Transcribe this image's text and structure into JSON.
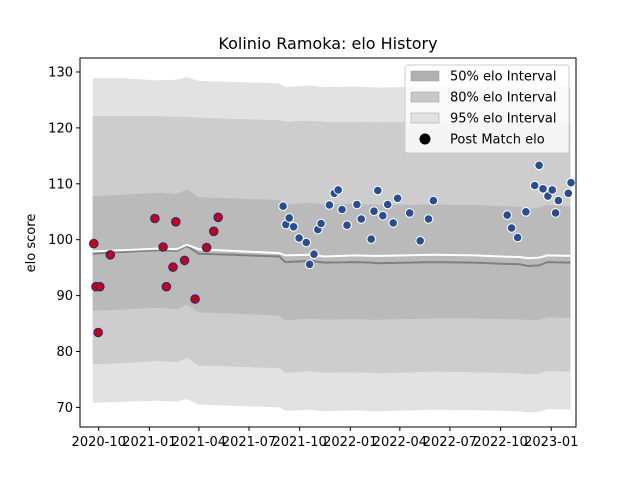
{
  "chart_data": {
    "type": "scatter",
    "title": "Kolinio Ramoka: elo History",
    "xlabel": "",
    "ylabel": "elo score",
    "xlim": [
      "2020-08-28",
      "2023-02-15"
    ],
    "ylim": [
      66.5,
      132.5
    ],
    "yticks": [
      70,
      80,
      90,
      100,
      110,
      120,
      130
    ],
    "xticks": [
      {
        "date": "2020-10-01",
        "label": "2020-10"
      },
      {
        "date": "2021-01-01",
        "label": "2021-01"
      },
      {
        "date": "2021-04-01",
        "label": "2021-04"
      },
      {
        "date": "2021-07-01",
        "label": "2021-07"
      },
      {
        "date": "2021-10-01",
        "label": "2021-10"
      },
      {
        "date": "2022-01-01",
        "label": "2022-01"
      },
      {
        "date": "2022-04-01",
        "label": "2022-04"
      },
      {
        "date": "2022-07-01",
        "label": "2022-07"
      },
      {
        "date": "2022-10-01",
        "label": "2022-10"
      },
      {
        "date": "2023-01-01",
        "label": "2023-01"
      }
    ],
    "grid": false,
    "legend_position": "top-right",
    "legend": [
      {
        "label": "50% elo Interval",
        "kind": "patch",
        "color": "#b0b0b0"
      },
      {
        "label": "80% elo Interval",
        "kind": "patch",
        "color": "#c8c8c8"
      },
      {
        "label": "95% elo Interval",
        "kind": "patch",
        "color": "#e2e2e2"
      },
      {
        "label": "Post Match elo",
        "kind": "marker",
        "color": "#000000"
      }
    ],
    "bands": {
      "dates": [
        "2020-09-20",
        "2020-11-10",
        "2021-01-15",
        "2021-02-20",
        "2021-03-10",
        "2021-04-01",
        "2021-06-01",
        "2021-08-25",
        "2021-09-05",
        "2021-10-20",
        "2021-11-15",
        "2022-01-10",
        "2022-02-10",
        "2022-02-20",
        "2022-06-01",
        "2022-08-15",
        "2022-10-01",
        "2022-11-05",
        "2022-11-20",
        "2022-12-10",
        "2022-12-25",
        "2023-02-05"
      ],
      "center": [
        97.5,
        97.8,
        98.1,
        98.0,
        98.9,
        97.5,
        97.3,
        97.0,
        96.0,
        96.2,
        95.9,
        96.0,
        95.9,
        95.8,
        96.0,
        95.9,
        95.7,
        95.6,
        95.3,
        95.4,
        96.0,
        95.9
      ],
      "p50_low": [
        87.3,
        87.5,
        87.8,
        87.6,
        88.4,
        87.0,
        86.8,
        86.4,
        85.6,
        85.9,
        85.7,
        85.8,
        85.7,
        85.7,
        85.9,
        85.9,
        85.8,
        85.8,
        85.6,
        85.7,
        86.1,
        86.0
      ],
      "p50_high": [
        107.8,
        108.0,
        108.4,
        108.2,
        109.0,
        107.6,
        107.4,
        107.1,
        106.3,
        106.6,
        106.3,
        106.4,
        106.3,
        106.2,
        106.3,
        106.2,
        106.0,
        105.9,
        105.6,
        105.7,
        106.2,
        106.0
      ],
      "p80_low": [
        77.7,
        77.9,
        78.3,
        78.1,
        78.9,
        77.5,
        77.3,
        77.0,
        76.2,
        76.5,
        76.2,
        76.3,
        76.2,
        76.1,
        76.4,
        76.3,
        76.2,
        76.1,
        75.9,
        76.0,
        76.5,
        76.4
      ],
      "p80_high": [
        122.1,
        122.1,
        122.1,
        122.0,
        122.0,
        121.8,
        121.6,
        121.4,
        121.1,
        121.3,
        121.1,
        121.1,
        121.0,
        121.0,
        121.1,
        121.0,
        120.9,
        120.8,
        120.5,
        120.6,
        121.1,
        121.0
      ],
      "p95_low": [
        70.8,
        71.0,
        71.2,
        71.0,
        71.5,
        70.5,
        70.3,
        70.0,
        69.4,
        69.6,
        69.3,
        69.5,
        69.3,
        69.3,
        69.6,
        69.5,
        69.4,
        69.3,
        69.1,
        69.2,
        69.7,
        69.6
      ],
      "p95_high": [
        128.9,
        128.9,
        128.5,
        128.6,
        129.1,
        128.4,
        128.2,
        128.0,
        127.3,
        127.6,
        127.3,
        127.4,
        127.3,
        127.2,
        127.4,
        127.3,
        127.2,
        127.1,
        126.9,
        127.0,
        127.4,
        127.3
      ]
    },
    "median_line": {
      "dates": [
        "2020-09-20",
        "2020-11-10",
        "2021-01-15",
        "2021-02-20",
        "2021-03-10",
        "2021-04-01",
        "2021-06-01",
        "2021-08-25",
        "2021-09-05",
        "2021-10-20",
        "2021-11-15",
        "2022-01-10",
        "2022-02-10",
        "2022-02-20",
        "2022-06-01",
        "2022-08-15",
        "2022-10-01",
        "2022-11-05",
        "2022-11-20",
        "2022-12-10",
        "2022-12-25",
        "2023-02-05"
      ],
      "values": [
        97.9,
        98.1,
        98.4,
        98.3,
        99.1,
        98.3,
        98.0,
        97.6,
        97.2,
        97.3,
        97.0,
        97.2,
        97.1,
        97.1,
        97.3,
        97.2,
        97.0,
        96.9,
        96.7,
        96.8,
        97.2,
        97.1
      ]
    },
    "series": [
      {
        "marker_face": "#c4001a",
        "marker_edge": "#1f2f7a",
        "points": [
          [
            "2020-09-22",
            99.3
          ],
          [
            "2020-09-26",
            91.6
          ],
          [
            "2020-09-30",
            83.4
          ],
          [
            "2020-10-03",
            91.6
          ],
          [
            "2020-10-22",
            97.3
          ],
          [
            "2021-01-11",
            103.8
          ],
          [
            "2021-01-26",
            98.7
          ],
          [
            "2021-02-01",
            91.6
          ],
          [
            "2021-02-13",
            95.1
          ],
          [
            "2021-02-18",
            103.2
          ],
          [
            "2021-03-06",
            96.3
          ],
          [
            "2021-03-25",
            89.4
          ],
          [
            "2021-04-15",
            98.6
          ],
          [
            "2021-04-28",
            101.5
          ],
          [
            "2021-05-06",
            104.0
          ]
        ]
      },
      {
        "marker_face": "#2a4d8f",
        "marker_edge": "#ffffff",
        "points": [
          [
            "2021-09-01",
            106.0
          ],
          [
            "2021-09-06",
            102.7
          ],
          [
            "2021-09-12",
            103.9
          ],
          [
            "2021-09-20",
            102.3
          ],
          [
            "2021-09-30",
            100.3
          ],
          [
            "2021-10-13",
            99.5
          ],
          [
            "2021-10-19",
            95.6
          ],
          [
            "2021-10-27",
            97.4
          ],
          [
            "2021-11-03",
            101.8
          ],
          [
            "2021-11-09",
            102.9
          ],
          [
            "2021-11-24",
            106.2
          ],
          [
            "2021-12-03",
            108.3
          ],
          [
            "2021-12-10",
            108.9
          ],
          [
            "2021-12-17",
            105.4
          ],
          [
            "2021-12-26",
            102.6
          ],
          [
            "2022-01-13",
            106.3
          ],
          [
            "2022-01-21",
            103.7
          ],
          [
            "2022-02-08",
            100.1
          ],
          [
            "2022-02-13",
            105.1
          ],
          [
            "2022-02-20",
            108.8
          ],
          [
            "2022-03-01",
            104.3
          ],
          [
            "2022-03-10",
            106.3
          ],
          [
            "2022-03-20",
            103.0
          ],
          [
            "2022-03-28",
            107.4
          ],
          [
            "2022-04-19",
            104.8
          ],
          [
            "2022-05-08",
            99.8
          ],
          [
            "2022-05-23",
            103.7
          ],
          [
            "2022-06-01",
            107.0
          ],
          [
            "2022-10-13",
            104.4
          ],
          [
            "2022-10-21",
            102.1
          ],
          [
            "2022-11-01",
            100.4
          ],
          [
            "2022-11-16",
            105.0
          ],
          [
            "2022-12-02",
            109.7
          ],
          [
            "2022-12-10",
            113.3
          ],
          [
            "2022-12-17",
            109.1
          ],
          [
            "2022-12-26",
            107.8
          ],
          [
            "2023-01-03",
            108.9
          ],
          [
            "2023-01-09",
            104.8
          ],
          [
            "2023-01-14",
            107.0
          ],
          [
            "2023-02-01",
            108.3
          ],
          [
            "2023-02-06",
            110.2
          ]
        ]
      }
    ]
  }
}
